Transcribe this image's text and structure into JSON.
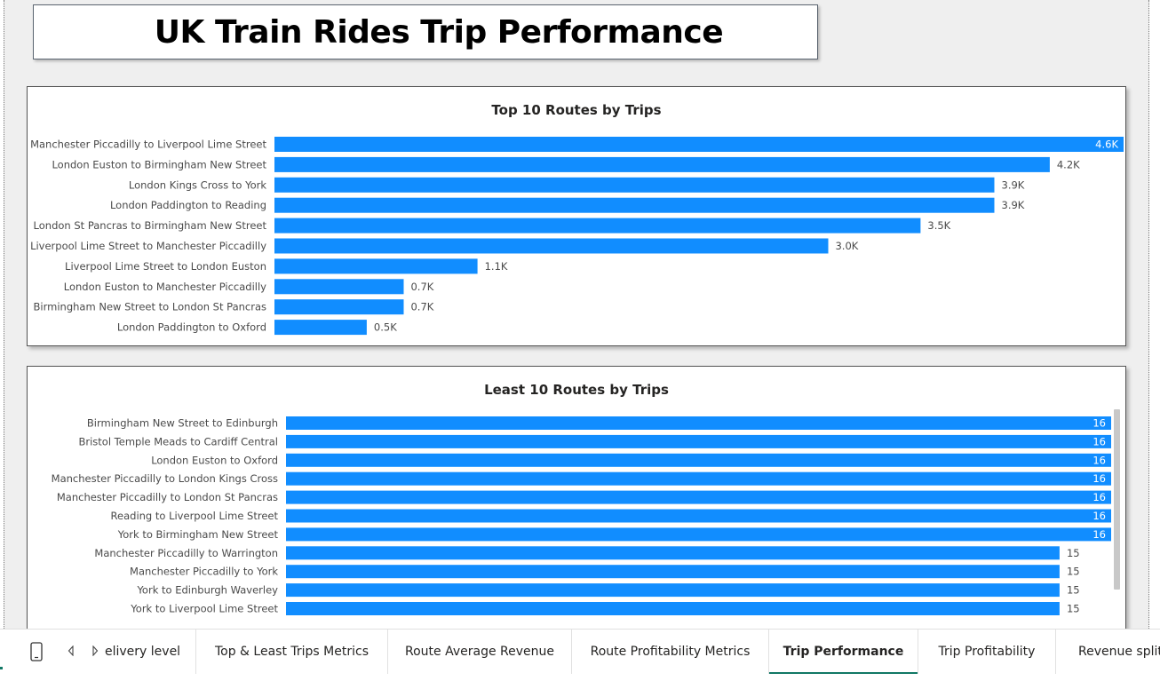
{
  "page": {
    "title": "UK Train Rides Trip Performance"
  },
  "charts": {
    "top": {
      "title": "Top 10 Routes by Trips"
    },
    "least": {
      "title": "Least 10 Routes by Trips"
    }
  },
  "chart_data": [
    {
      "type": "bar",
      "orientation": "horizontal",
      "title": "Top 10 Routes by Trips",
      "categories": [
        "Manchester Piccadilly to Liverpool Lime Street",
        "London Euston to Birmingham New Street",
        "London Kings Cross to York",
        "London Paddington to Reading",
        "London St Pancras to Birmingham New Street",
        "Liverpool Lime Street to Manchester Piccadilly",
        "Liverpool Lime Street to London Euston",
        "London Euston to Manchester Piccadilly",
        "Birmingham New Street to London St Pancras",
        "London Paddington to Oxford"
      ],
      "values": [
        4600,
        4200,
        3900,
        3900,
        3500,
        3000,
        1100,
        700,
        700,
        500
      ],
      "data_labels": [
        "4.6K",
        "4.2K",
        "3.9K",
        "3.9K",
        "3.5K",
        "3.0K",
        "1.1K",
        "0.7K",
        "0.7K",
        "0.5K"
      ],
      "color": "#118dff",
      "grid": false
    },
    {
      "type": "bar",
      "orientation": "horizontal",
      "title": "Least 10 Routes by Trips",
      "categories": [
        "Birmingham New Street to Edinburgh",
        "Bristol Temple Meads to Cardiff Central",
        "London Euston to Oxford",
        "Manchester Piccadilly to London Kings Cross",
        "Manchester Piccadilly to London St Pancras",
        "Reading to Liverpool Lime Street",
        "York to Birmingham New Street",
        "Manchester Piccadilly to Warrington",
        "Manchester Piccadilly to York",
        "York to Edinburgh Waverley",
        "York to Liverpool Lime Street"
      ],
      "values": [
        16,
        16,
        16,
        16,
        16,
        16,
        16,
        15,
        15,
        15,
        15
      ],
      "data_labels": [
        "16",
        "16",
        "16",
        "16",
        "16",
        "16",
        "16",
        "15",
        "15",
        "15",
        "15"
      ],
      "color": "#118dff",
      "grid": false
    }
  ],
  "tabs": [
    {
      "label": "elivery level",
      "active": false
    },
    {
      "label": "Top & Least Trips Metrics",
      "active": false
    },
    {
      "label": "Route Average Revenue",
      "active": false
    },
    {
      "label": "Route Profitability Metrics",
      "active": false
    },
    {
      "label": "Trip Performance",
      "active": true
    },
    {
      "label": "Trip Profitability",
      "active": false
    },
    {
      "label": "Revenue split",
      "active": false
    }
  ],
  "colors": {
    "bar": "#118dff",
    "active_tab": "#117865"
  }
}
